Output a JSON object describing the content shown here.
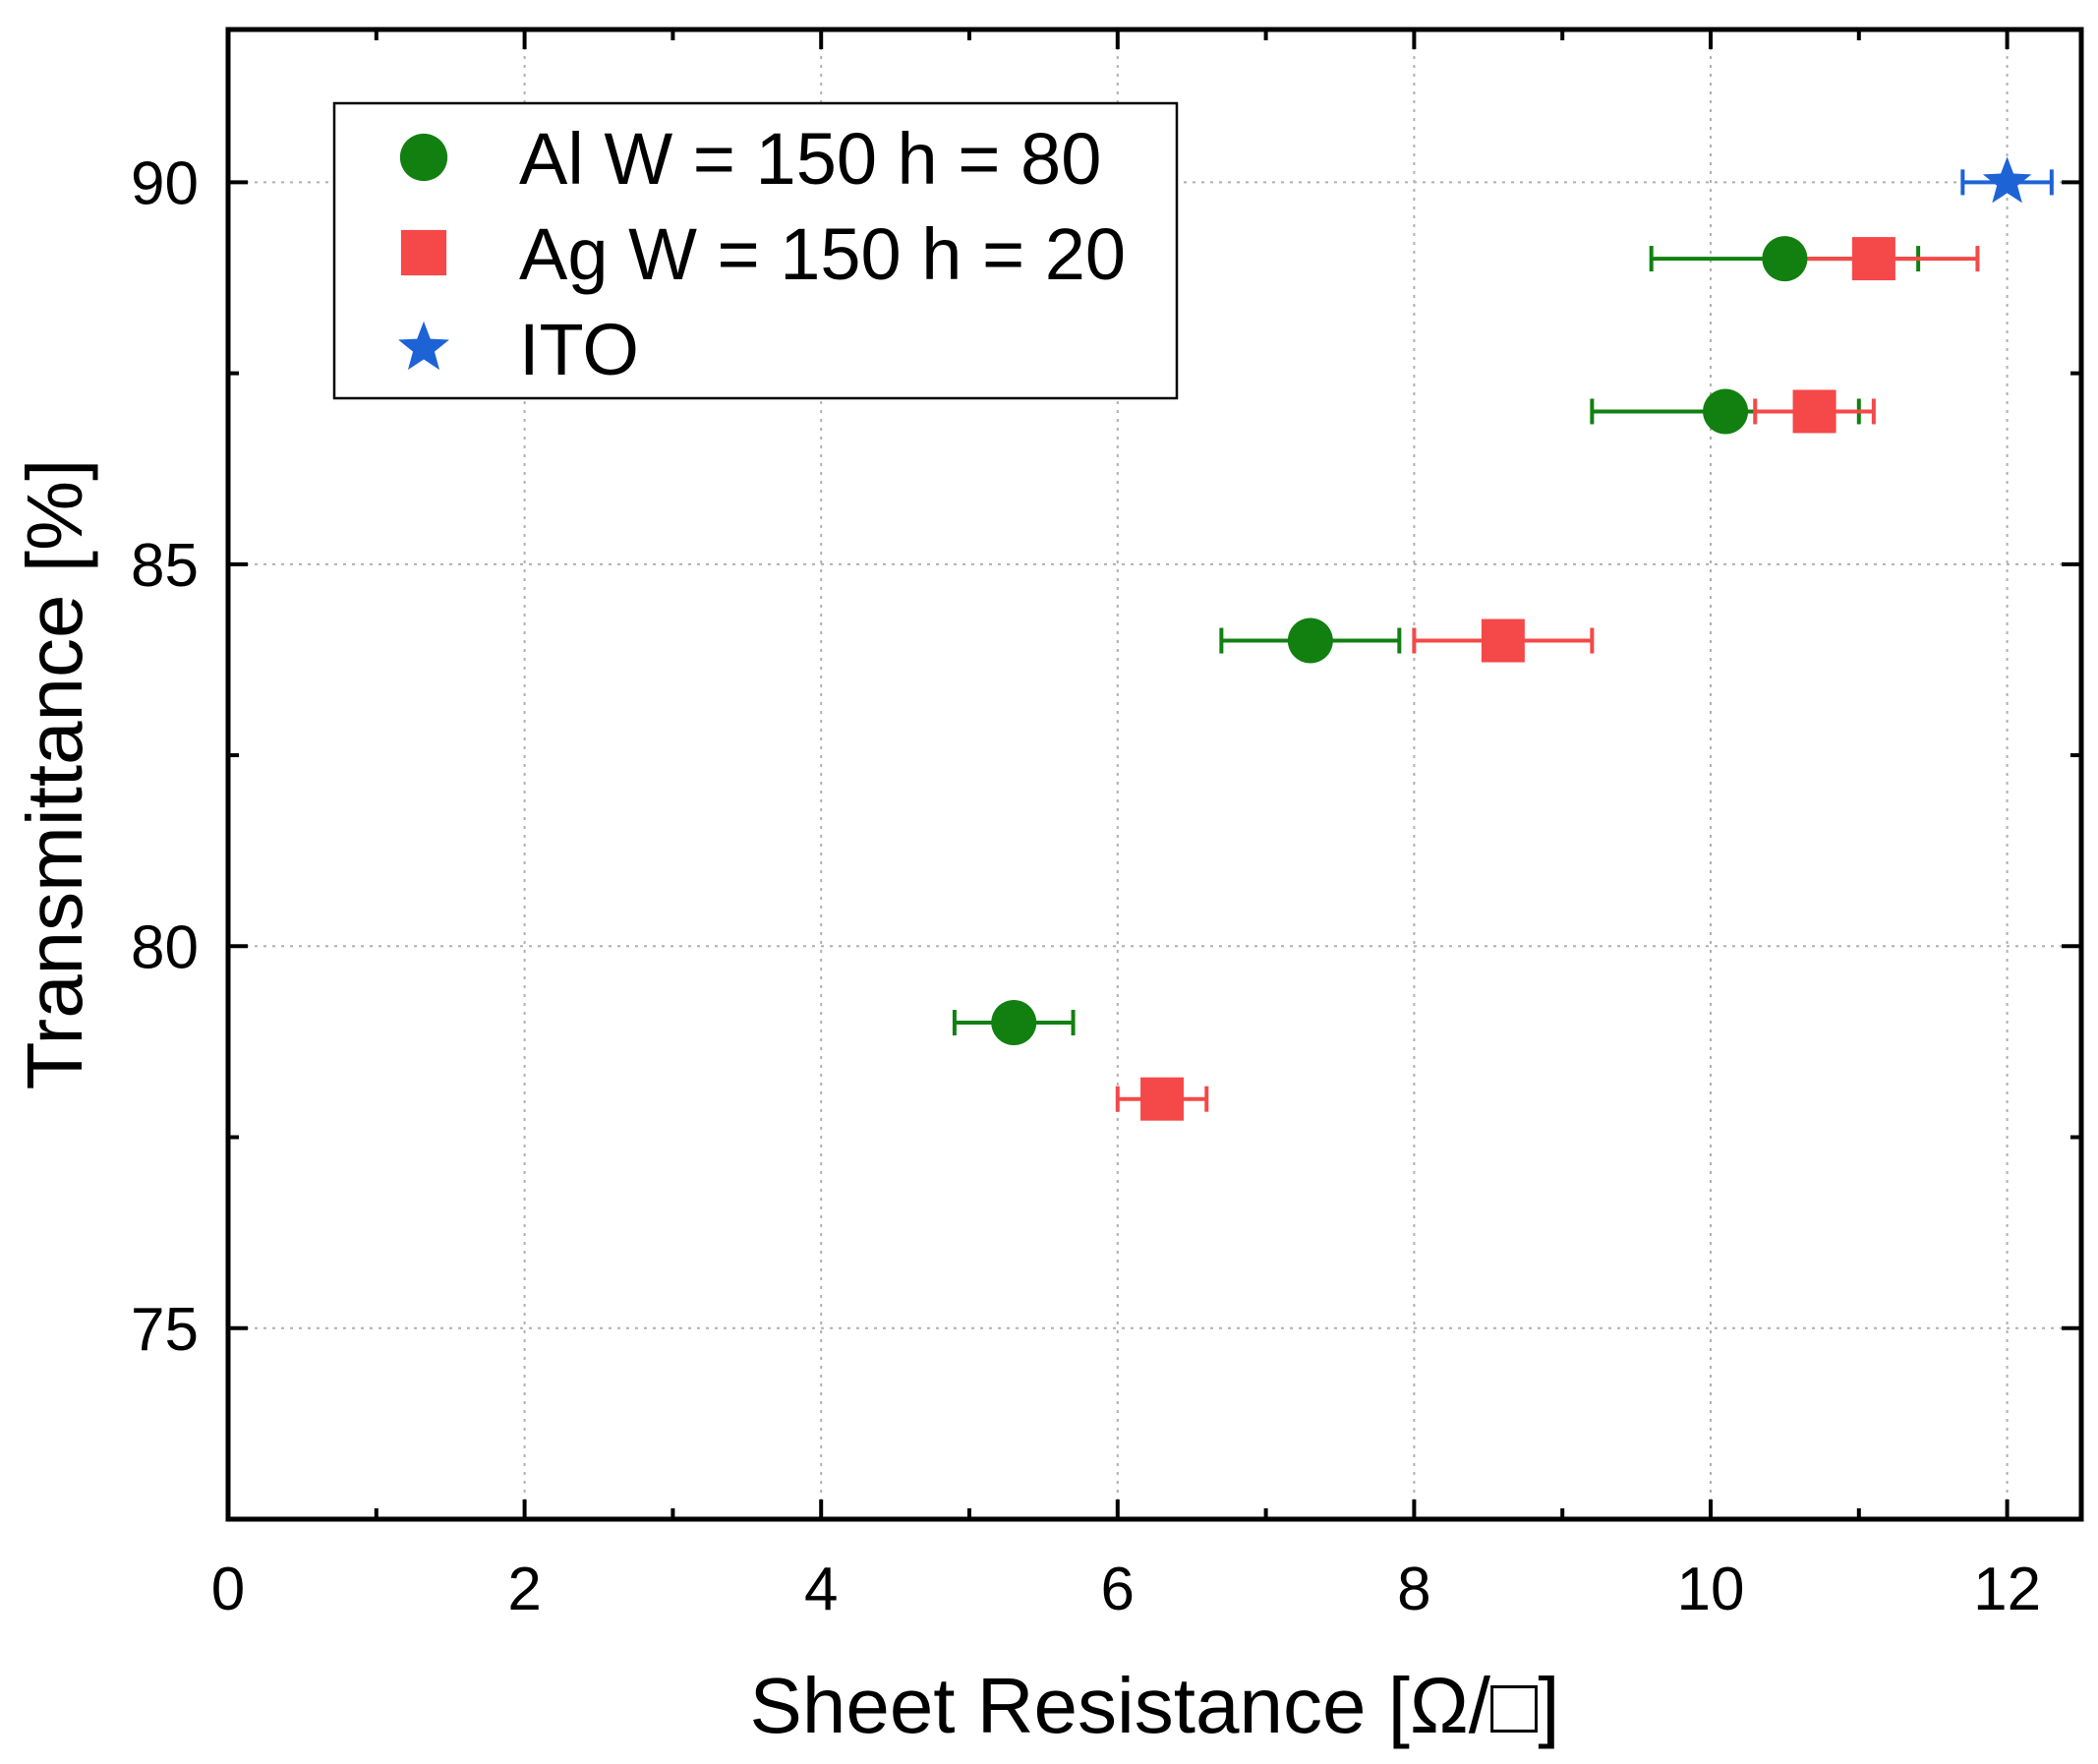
{
  "chart_data": {
    "type": "scatter",
    "title": "",
    "xlabel": "Sheet Resistance [Ω/□]",
    "ylabel": "Transmittance [%]",
    "xlim": [
      0,
      12.5
    ],
    "ylim": [
      72.5,
      92
    ],
    "x_ticks": [
      0,
      2,
      4,
      6,
      8,
      10,
      12
    ],
    "x_tick_labels": [
      "0",
      "2",
      "4",
      "6",
      "8",
      "10",
      "12"
    ],
    "y_ticks": [
      75,
      80,
      85,
      90
    ],
    "y_tick_labels": [
      "75",
      "80",
      "85",
      "90"
    ],
    "grid": true,
    "legend_position": "top-left",
    "series": [
      {
        "name": "Al W = 150 h = 80",
        "marker": "circle",
        "color": "#118011",
        "points": [
          {
            "x": 5.3,
            "y": 79,
            "xerr": 0.4
          },
          {
            "x": 7.3,
            "y": 84,
            "xerr": 0.6
          },
          {
            "x": 10.1,
            "y": 87,
            "xerr": 0.9
          },
          {
            "x": 10.5,
            "y": 89,
            "xerr": 0.9
          }
        ]
      },
      {
        "name": "Ag W = 150 h = 20",
        "marker": "square",
        "color": "#f54848",
        "points": [
          {
            "x": 6.3,
            "y": 78,
            "xerr": 0.3
          },
          {
            "x": 8.6,
            "y": 84,
            "xerr": 0.6
          },
          {
            "x": 10.7,
            "y": 87,
            "xerr": 0.4
          },
          {
            "x": 11.1,
            "y": 89,
            "xerr": 0.7
          }
        ]
      },
      {
        "name": "ITO",
        "marker": "star",
        "color": "#1e63d6",
        "points": [
          {
            "x": 12.0,
            "y": 90,
            "xerr": 0.3
          }
        ]
      }
    ]
  }
}
